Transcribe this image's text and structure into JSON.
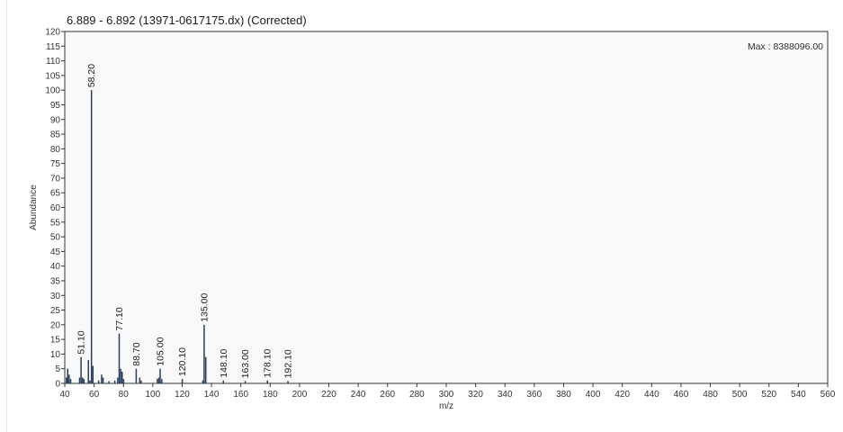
{
  "chart_data": {
    "type": "bar",
    "title": "6.889 - 6.892 (13971-0617175.dx) (Corrected)",
    "xlabel": "m/z",
    "ylabel": "Abundance",
    "max_label": "Max : 8388096.00",
    "xlim": [
      40,
      560
    ],
    "ylim": [
      0,
      120
    ],
    "x_ticks": [
      40,
      60,
      80,
      100,
      120,
      140,
      160,
      180,
      200,
      220,
      240,
      260,
      280,
      300,
      320,
      340,
      360,
      380,
      400,
      420,
      440,
      460,
      480,
      500,
      520,
      540,
      560
    ],
    "y_ticks": [
      0,
      5,
      10,
      15,
      20,
      25,
      30,
      35,
      40,
      45,
      50,
      55,
      60,
      65,
      70,
      75,
      80,
      85,
      90,
      95,
      100,
      105,
      110,
      115,
      120
    ],
    "grid": false,
    "peaks": [
      {
        "mz": 41.1,
        "abundance": 2
      },
      {
        "mz": 42.0,
        "abundance": 5
      },
      {
        "mz": 43.0,
        "abundance": 3
      },
      {
        "mz": 44.0,
        "abundance": 1.5
      },
      {
        "mz": 50.1,
        "abundance": 2
      },
      {
        "mz": 51.1,
        "abundance": 9
      },
      {
        "mz": 52.1,
        "abundance": 2
      },
      {
        "mz": 53.1,
        "abundance": 1.5
      },
      {
        "mz": 56.1,
        "abundance": 8
      },
      {
        "mz": 57.1,
        "abundance": 1
      },
      {
        "mz": 58.2,
        "abundance": 100
      },
      {
        "mz": 59.2,
        "abundance": 6
      },
      {
        "mz": 63.1,
        "abundance": 1
      },
      {
        "mz": 65.1,
        "abundance": 3
      },
      {
        "mz": 66.1,
        "abundance": 2
      },
      {
        "mz": 70.1,
        "abundance": 0.8
      },
      {
        "mz": 74.1,
        "abundance": 1
      },
      {
        "mz": 76.1,
        "abundance": 2
      },
      {
        "mz": 77.1,
        "abundance": 17
      },
      {
        "mz": 78.1,
        "abundance": 5
      },
      {
        "mz": 79.1,
        "abundance": 4
      },
      {
        "mz": 80.1,
        "abundance": 1.5
      },
      {
        "mz": 88.7,
        "abundance": 5
      },
      {
        "mz": 91.1,
        "abundance": 2
      },
      {
        "mz": 92.1,
        "abundance": 1
      },
      {
        "mz": 103.1,
        "abundance": 1.5
      },
      {
        "mz": 104.1,
        "abundance": 2
      },
      {
        "mz": 105.0,
        "abundance": 5
      },
      {
        "mz": 106.1,
        "abundance": 1.5
      },
      {
        "mz": 120.1,
        "abundance": 1.5
      },
      {
        "mz": 134.1,
        "abundance": 1
      },
      {
        "mz": 135.0,
        "abundance": 20
      },
      {
        "mz": 136.1,
        "abundance": 9
      },
      {
        "mz": 148.1,
        "abundance": 1
      },
      {
        "mz": 163.0,
        "abundance": 0.8
      },
      {
        "mz": 178.1,
        "abundance": 1
      },
      {
        "mz": 192.1,
        "abundance": 0.8
      }
    ],
    "peak_labels": [
      {
        "mz": 51.1,
        "abundance": 9,
        "text": "51.10"
      },
      {
        "mz": 58.2,
        "abundance": 100,
        "text": "58.20"
      },
      {
        "mz": 77.1,
        "abundance": 17,
        "text": "77.10"
      },
      {
        "mz": 88.7,
        "abundance": 5,
        "text": "88.70"
      },
      {
        "mz": 105.0,
        "abundance": 5,
        "text": "105.00"
      },
      {
        "mz": 120.1,
        "abundance": 1.5,
        "text": "120.10"
      },
      {
        "mz": 135.0,
        "abundance": 20,
        "text": "135.00"
      },
      {
        "mz": 148.1,
        "abundance": 1,
        "text": "148.10"
      },
      {
        "mz": 163.0,
        "abundance": 0.8,
        "text": "163.00"
      },
      {
        "mz": 178.1,
        "abundance": 1,
        "text": "178.10"
      },
      {
        "mz": 192.1,
        "abundance": 0.8,
        "text": "192.10"
      }
    ],
    "colors": {
      "bar": "#2a3f5a",
      "plot_bg": "#f8f8f8",
      "axis": "#333333"
    }
  }
}
